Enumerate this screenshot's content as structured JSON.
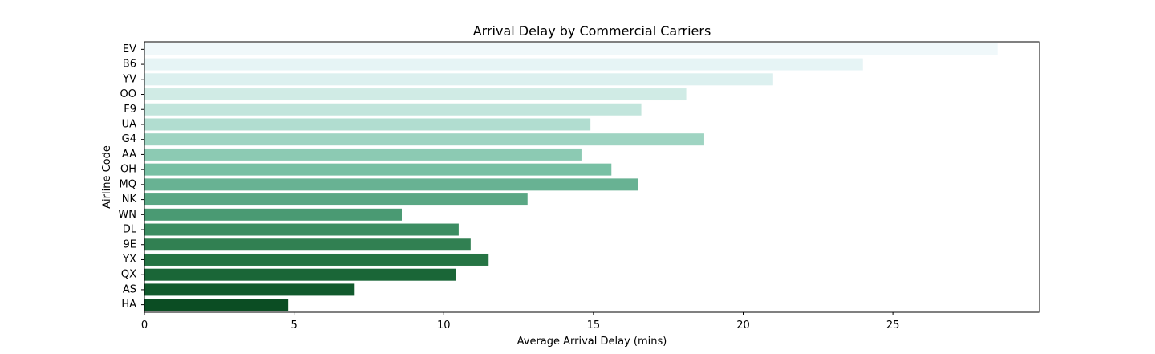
{
  "chart_data": {
    "type": "bar",
    "orientation": "horizontal",
    "title": "Arrival Delay by Commercial Carriers",
    "xlabel": "Average Arrival Delay (mins)",
    "ylabel": "Airline Code",
    "xlim": [
      0,
      29.9
    ],
    "xticks": [
      0,
      5,
      10,
      15,
      20,
      25
    ],
    "grid": false,
    "categories": [
      "EV",
      "B6",
      "YV",
      "OO",
      "F9",
      "UA",
      "G4",
      "AA",
      "OH",
      "MQ",
      "NK",
      "WN",
      "DL",
      "9E",
      "YX",
      "QX",
      "AS",
      "HA"
    ],
    "values": [
      28.5,
      24.0,
      21.0,
      18.1,
      16.6,
      14.9,
      18.7,
      14.6,
      15.6,
      16.5,
      12.8,
      8.6,
      10.5,
      10.9,
      11.5,
      10.4,
      7.0,
      4.8
    ],
    "colors": [
      "#f0f8fa",
      "#e6f4f5",
      "#dcf0ef",
      "#d0ebe5",
      "#c2e5dc",
      "#b1ddd0",
      "#9fd4c2",
      "#8ccab3",
      "#78c0a4",
      "#68b293",
      "#5aa784",
      "#4a9a73",
      "#3c8d62",
      "#318052",
      "#267444",
      "#1a6637",
      "#125a2d",
      "#0b4d23"
    ]
  }
}
